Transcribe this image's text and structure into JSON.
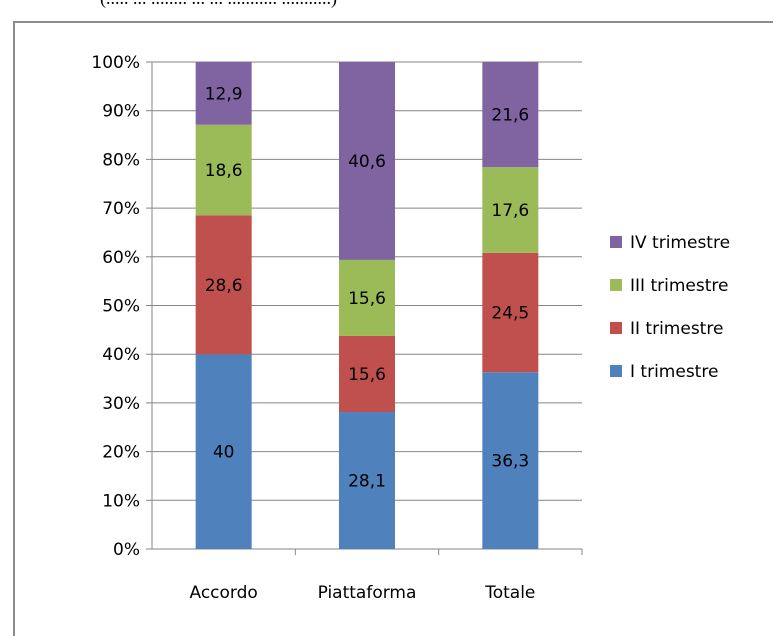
{
  "caption": "(..... ... ........ ... ... ........... ...........)",
  "chart_data": {
    "type": "bar",
    "stacked": true,
    "percent": true,
    "categories": [
      "Accordo",
      "Piattaforma",
      "Totale"
    ],
    "series": [
      {
        "name": "I trimestre",
        "color": "#4F81BD",
        "values": [
          40,
          28.1,
          36.3
        ],
        "labels": [
          "40",
          "28,1",
          "36,3"
        ]
      },
      {
        "name": "II trimestre",
        "color": "#C0504D",
        "values": [
          28.6,
          15.6,
          24.5
        ],
        "labels": [
          "28,6",
          "15,6",
          "24,5"
        ]
      },
      {
        "name": "III trimestre",
        "color": "#9BBB59",
        "values": [
          18.6,
          15.6,
          17.6
        ],
        "labels": [
          "18,6",
          "15,6",
          "17,6"
        ]
      },
      {
        "name": "IV trimestre",
        "color": "#8064A2",
        "values": [
          12.9,
          40.6,
          21.6
        ],
        "labels": [
          "12,9",
          "40,6",
          "21,6"
        ]
      }
    ],
    "y_ticks": [
      "0%",
      "10%",
      "20%",
      "30%",
      "40%",
      "50%",
      "60%",
      "70%",
      "80%",
      "90%",
      "100%"
    ],
    "ylim": [
      0,
      100
    ],
    "grid": true,
    "legend": "right"
  }
}
